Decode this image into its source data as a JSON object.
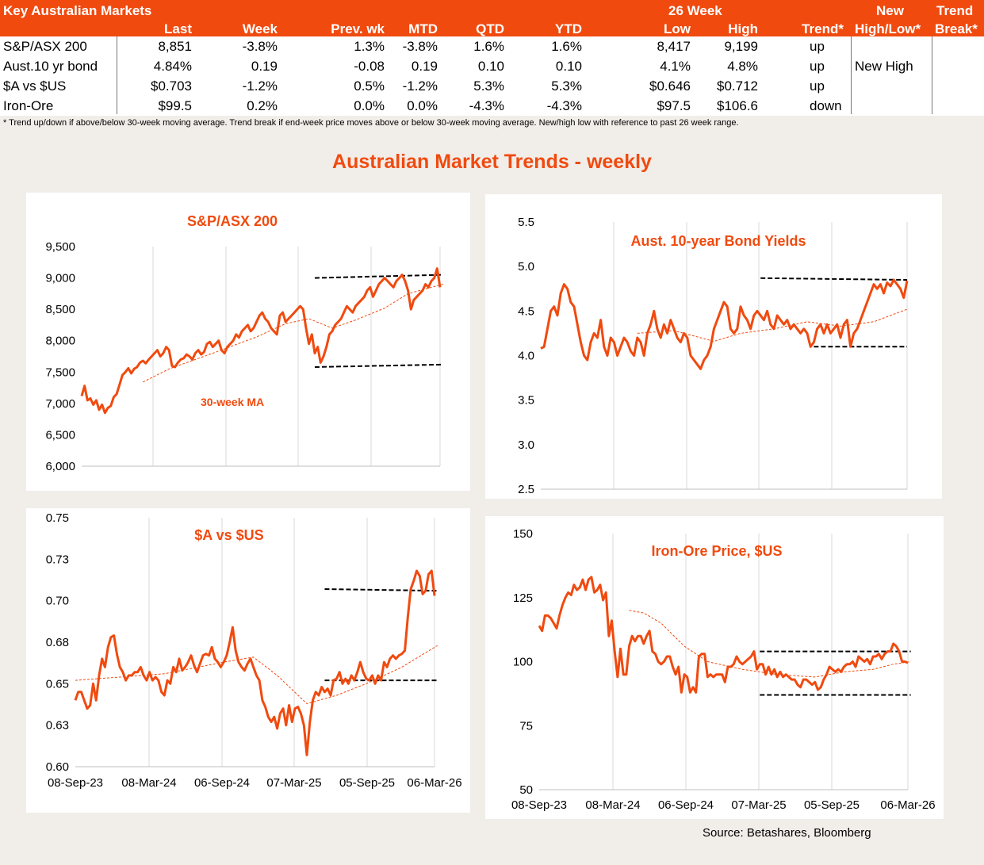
{
  "table": {
    "title": "Key Australian Markets",
    "group_header": "26 Week",
    "columns": [
      "Last",
      "Week",
      "Prev. wk",
      "MTD",
      "QTD",
      "YTD",
      "Low",
      "High",
      "Trend*",
      "New",
      "High/Low*",
      "Trend",
      "Break*"
    ],
    "rows": [
      {
        "name": "S&P/ASX 200",
        "last": "8,851",
        "week": "-3.8%",
        "prev": "1.3%",
        "mtd": "-3.8%",
        "qtd": "1.6%",
        "ytd": "1.6%",
        "low": "8,417",
        "high": "9,199",
        "trend": "up",
        "newhl": "",
        "brk": ""
      },
      {
        "name": "Aust.10 yr bond",
        "last": "4.84%",
        "week": "0.19",
        "prev": "-0.08",
        "mtd": "0.19",
        "qtd": "0.10",
        "ytd": "0.10",
        "low": "4.1%",
        "high": "4.8%",
        "trend": "up",
        "newhl": "New High",
        "brk": ""
      },
      {
        "name": "$A vs $US",
        "last": "$0.703",
        "week": "-1.2%",
        "prev": "0.5%",
        "mtd": "-1.2%",
        "qtd": "5.3%",
        "ytd": "5.3%",
        "low": "$0.646",
        "high": "$0.712",
        "trend": "up",
        "newhl": "",
        "brk": ""
      },
      {
        "name": "Iron-Ore",
        "last": "$99.5",
        "week": "0.2%",
        "prev": "0.0%",
        "mtd": "0.0%",
        "qtd": "-4.3%",
        "ytd": "-4.3%",
        "low": "$97.5",
        "high": "$106.6",
        "trend": "down",
        "newhl": "",
        "brk": ""
      }
    ],
    "footnote": "*  Trend up/down if above/below 30-week moving average. Trend break if end-week price moves above or below 30-week moving average.  New/high low with reference to past 26 week range."
  },
  "section_title": "Australian Market Trends - weekly",
  "source": "Source:  Betashares, Bloomberg",
  "colors": {
    "accent": "#f04a0f",
    "ma": "#f04a0f",
    "band": "#000000",
    "grid": "#d9d9d9"
  },
  "chart_data": [
    {
      "id": "asx",
      "type": "line",
      "title": "S&P/ASX 200",
      "annotation": "30-week MA",
      "ylim": [
        6000,
        9500
      ],
      "yticks": [
        "6,000",
        "6,500",
        "7,000",
        "7,500",
        "8,000",
        "8,500",
        "9,000",
        "9,500"
      ],
      "x_ticks": [],
      "series": {
        "values": [
          7120,
          7280,
          7050,
          7080,
          6980,
          7050,
          6900,
          6980,
          6850,
          6930,
          6960,
          7100,
          7150,
          7300,
          7450,
          7500,
          7560,
          7480,
          7550,
          7580,
          7650,
          7680,
          7640,
          7700,
          7750,
          7800,
          7850,
          7750,
          7800,
          7900,
          7850,
          7600,
          7580,
          7650,
          7700,
          7720,
          7780,
          7750,
          7700,
          7800,
          7850,
          7780,
          7820,
          7950,
          7980,
          7900,
          7950,
          8000,
          7850,
          7800,
          7900,
          7950,
          8000,
          8100,
          8050,
          8150,
          8200,
          8250,
          8150,
          8200,
          8300,
          8400,
          8450,
          8350,
          8300,
          8200,
          8150,
          8100,
          8400,
          8450,
          8300,
          8350,
          8400,
          8450,
          8500,
          8550,
          8500,
          8200,
          7950,
          8100,
          7800,
          7900,
          7650,
          7750,
          7900,
          8100,
          8150,
          8250,
          8300,
          8350,
          8450,
          8550,
          8500,
          8450,
          8550,
          8600,
          8650,
          8700,
          8800,
          8850,
          8700,
          8800,
          8900,
          8950,
          9000,
          8950,
          8900,
          8850,
          8950,
          9000,
          9050,
          8950,
          8800,
          8500,
          8650,
          8700,
          8750,
          8800,
          8900,
          8850,
          8950,
          9000,
          9150,
          8850
        ],
        "ma": [
          [
            21,
            7340
          ],
          [
            30,
            7550
          ],
          [
            45,
            7800
          ],
          [
            60,
            8060
          ],
          [
            70,
            8270
          ],
          [
            78,
            8350
          ],
          [
            86,
            8200
          ],
          [
            94,
            8330
          ],
          [
            104,
            8520
          ],
          [
            112,
            8750
          ],
          [
            124,
            8900
          ]
        ]
      },
      "band_high": [
        [
          80,
          9000
        ],
        [
          124,
          9050
        ]
      ],
      "band_low": [
        [
          80,
          7580
        ],
        [
          124,
          7620
        ]
      ]
    },
    {
      "id": "bond",
      "type": "line",
      "title": "Aust. 10-year Bond Yields",
      "ylim": [
        2.5,
        5.5
      ],
      "yticks": [
        "2.5",
        "3.0",
        "3.5",
        "4.0",
        "4.5",
        "5.0",
        "5.5"
      ],
      "x_ticks": [],
      "series": {
        "values": [
          4.08,
          4.1,
          4.3,
          4.5,
          4.55,
          4.45,
          4.7,
          4.8,
          4.75,
          4.6,
          4.55,
          4.35,
          4.15,
          4.0,
          3.95,
          4.15,
          4.25,
          4.2,
          4.4,
          4.1,
          4.0,
          4.2,
          4.15,
          4.0,
          4.1,
          4.2,
          4.15,
          4.05,
          4.0,
          4.2,
          4.15,
          4.0,
          4.25,
          4.35,
          4.5,
          4.3,
          4.2,
          4.35,
          4.25,
          4.4,
          4.3,
          4.2,
          4.15,
          4.25,
          4.2,
          4.0,
          3.95,
          3.9,
          3.85,
          3.95,
          4.0,
          4.1,
          4.3,
          4.4,
          4.5,
          4.6,
          4.55,
          4.3,
          4.25,
          4.3,
          4.55,
          4.45,
          4.4,
          4.3,
          4.45,
          4.5,
          4.45,
          4.4,
          4.5,
          4.35,
          4.3,
          4.45,
          4.4,
          4.35,
          4.4,
          4.3,
          4.35,
          4.3,
          4.25,
          4.3,
          4.25,
          4.1,
          4.15,
          4.3,
          4.35,
          4.25,
          4.35,
          4.25,
          4.3,
          4.35,
          4.2,
          4.35,
          4.4,
          4.1,
          4.25,
          4.3,
          4.4,
          4.5,
          4.6,
          4.7,
          4.8,
          4.75,
          4.8,
          4.7,
          4.82,
          4.78,
          4.85,
          4.8,
          4.75,
          4.65,
          4.84
        ],
        "ma": [
          [
            29,
            4.25
          ],
          [
            40,
            4.28
          ],
          [
            52,
            4.16
          ],
          [
            60,
            4.25
          ],
          [
            70,
            4.3
          ],
          [
            80,
            4.38
          ],
          [
            90,
            4.33
          ],
          [
            100,
            4.38
          ],
          [
            110,
            4.52
          ]
        ]
      },
      "band_high": [
        [
          66,
          4.87
        ],
        [
          110,
          4.85
        ]
      ],
      "band_low": [
        [
          82,
          4.1
        ],
        [
          110,
          4.1
        ]
      ]
    },
    {
      "id": "aud",
      "type": "line",
      "title": "$A vs $US",
      "ylim": [
        0.6,
        0.75
      ],
      "yticks": [
        "0.60",
        "0.63",
        "0.65",
        "0.68",
        "0.70",
        "0.73",
        "0.75"
      ],
      "x_ticks": [
        "08-Sep-23",
        "08-Mar-24",
        "06-Sep-24",
        "07-Mar-25",
        "05-Sep-25",
        "06-Mar-26"
      ],
      "series": {
        "values": [
          0.64,
          0.645,
          0.645,
          0.64,
          0.635,
          0.637,
          0.65,
          0.64,
          0.655,
          0.665,
          0.66,
          0.672,
          0.678,
          0.679,
          0.668,
          0.66,
          0.657,
          0.652,
          0.655,
          0.655,
          0.657,
          0.657,
          0.66,
          0.655,
          0.652,
          0.657,
          0.652,
          0.654,
          0.652,
          0.645,
          0.643,
          0.652,
          0.65,
          0.66,
          0.657,
          0.665,
          0.658,
          0.66,
          0.663,
          0.667,
          0.661,
          0.657,
          0.662,
          0.667,
          0.668,
          0.667,
          0.672,
          0.665,
          0.663,
          0.66,
          0.663,
          0.667,
          0.675,
          0.684,
          0.67,
          0.663,
          0.66,
          0.658,
          0.662,
          0.665,
          0.66,
          0.655,
          0.652,
          0.64,
          0.636,
          0.63,
          0.627,
          0.63,
          0.623,
          0.632,
          0.635,
          0.625,
          0.637,
          0.627,
          0.635,
          0.636,
          0.632,
          0.625,
          0.607,
          0.627,
          0.64,
          0.645,
          0.643,
          0.648,
          0.645,
          0.647,
          0.643,
          0.652,
          0.653,
          0.657,
          0.65,
          0.653,
          0.65,
          0.655,
          0.652,
          0.657,
          0.663,
          0.657,
          0.653,
          0.652,
          0.655,
          0.65,
          0.655,
          0.652,
          0.663,
          0.66,
          0.665,
          0.667,
          0.665,
          0.667,
          0.668,
          0.67,
          0.69,
          0.707,
          0.712,
          0.718,
          0.715,
          0.704,
          0.706,
          0.716,
          0.718,
          0.703
        ],
        "ma": [
          [
            0,
            0.652
          ],
          [
            30,
            0.656
          ],
          [
            50,
            0.663
          ],
          [
            60,
            0.666
          ],
          [
            68,
            0.655
          ],
          [
            78,
            0.638
          ],
          [
            88,
            0.643
          ],
          [
            98,
            0.65
          ],
          [
            104,
            0.655
          ],
          [
            110,
            0.66
          ],
          [
            122,
            0.673
          ]
        ]
      },
      "band_high": [
        [
          84,
          0.707
        ],
        [
          122,
          0.706
        ]
      ],
      "band_low": [
        [
          84,
          0.652
        ],
        [
          122,
          0.652
        ]
      ]
    },
    {
      "id": "iron",
      "type": "line",
      "title": "Iron-Ore Price, $US",
      "ylim": [
        50,
        150
      ],
      "yticks": [
        "50",
        "75",
        "100",
        "125",
        "150"
      ],
      "x_ticks": [
        "08-Sep-23",
        "08-Mar-24",
        "06-Sep-24",
        "07-Mar-25",
        "05-Sep-25",
        "06-Mar-26"
      ],
      "series": {
        "values": [
          114,
          112,
          118,
          118,
          117,
          115,
          113,
          118,
          122,
          125,
          127,
          126,
          130,
          128,
          129,
          132,
          128,
          132,
          133,
          127,
          128,
          130,
          124,
          127,
          110,
          116,
          104,
          94,
          105,
          95,
          95,
          106,
          110,
          108,
          110,
          110,
          107,
          110,
          112,
          104,
          103,
          100,
          99,
          100,
          102,
          102,
          98,
          95,
          98,
          88,
          95,
          94,
          88,
          90,
          88,
          102,
          103,
          103,
          94,
          95,
          94,
          95,
          95,
          95,
          92,
          98,
          98,
          99,
          102,
          100,
          99,
          100,
          101,
          102,
          104,
          97,
          99,
          99,
          95,
          98,
          95,
          97,
          94,
          96,
          94,
          95,
          94,
          93,
          93,
          91,
          90,
          93,
          93,
          92,
          91,
          92,
          89,
          90,
          93,
          95,
          98,
          97,
          96,
          97,
          96,
          98,
          99,
          99,
          100,
          98,
          102,
          101,
          100,
          101,
          99,
          102,
          102,
          103,
          101,
          103,
          104,
          104,
          107,
          106,
          104,
          100,
          100,
          99.5
        ],
        "ma": [
          [
            31,
            120
          ],
          [
            36,
            119
          ],
          [
            42,
            115
          ],
          [
            50,
            106
          ],
          [
            58,
            100
          ],
          [
            70,
            97
          ],
          [
            82,
            95
          ],
          [
            95,
            94
          ],
          [
            105,
            96
          ],
          [
            115,
            97
          ],
          [
            122,
            99
          ],
          [
            128,
            100
          ]
        ]
      },
      "band_high": [
        [
          76,
          104
        ],
        [
          128,
          104
        ]
      ],
      "band_low": [
        [
          76,
          87
        ],
        [
          128,
          87
        ]
      ]
    }
  ]
}
